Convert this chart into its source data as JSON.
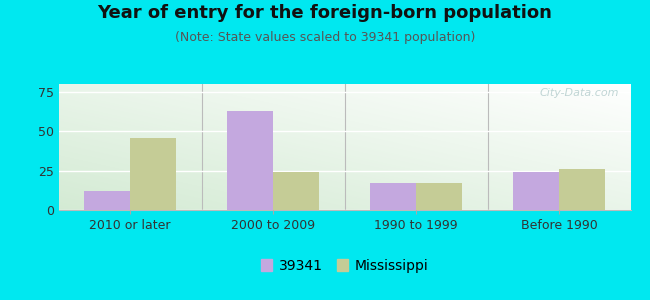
{
  "title": "Year of entry for the foreign-born population",
  "subtitle": "(Note: State values scaled to 39341 population)",
  "categories": [
    "2010 or later",
    "2000 to 2009",
    "1990 to 1999",
    "Before 1990"
  ],
  "values_39341": [
    12,
    63,
    17,
    24
  ],
  "values_mississippi": [
    46,
    24,
    17,
    26
  ],
  "bar_color_39341": "#c4a8df",
  "bar_color_mississippi": "#c5cc96",
  "background_outer": "#00e8f0",
  "ylim": [
    0,
    80
  ],
  "yticks": [
    0,
    25,
    50,
    75
  ],
  "legend_label_1": "39341",
  "legend_label_2": "Mississippi",
  "title_fontsize": 13,
  "subtitle_fontsize": 9,
  "tick_fontsize": 9,
  "legend_fontsize": 10,
  "bar_width": 0.32
}
